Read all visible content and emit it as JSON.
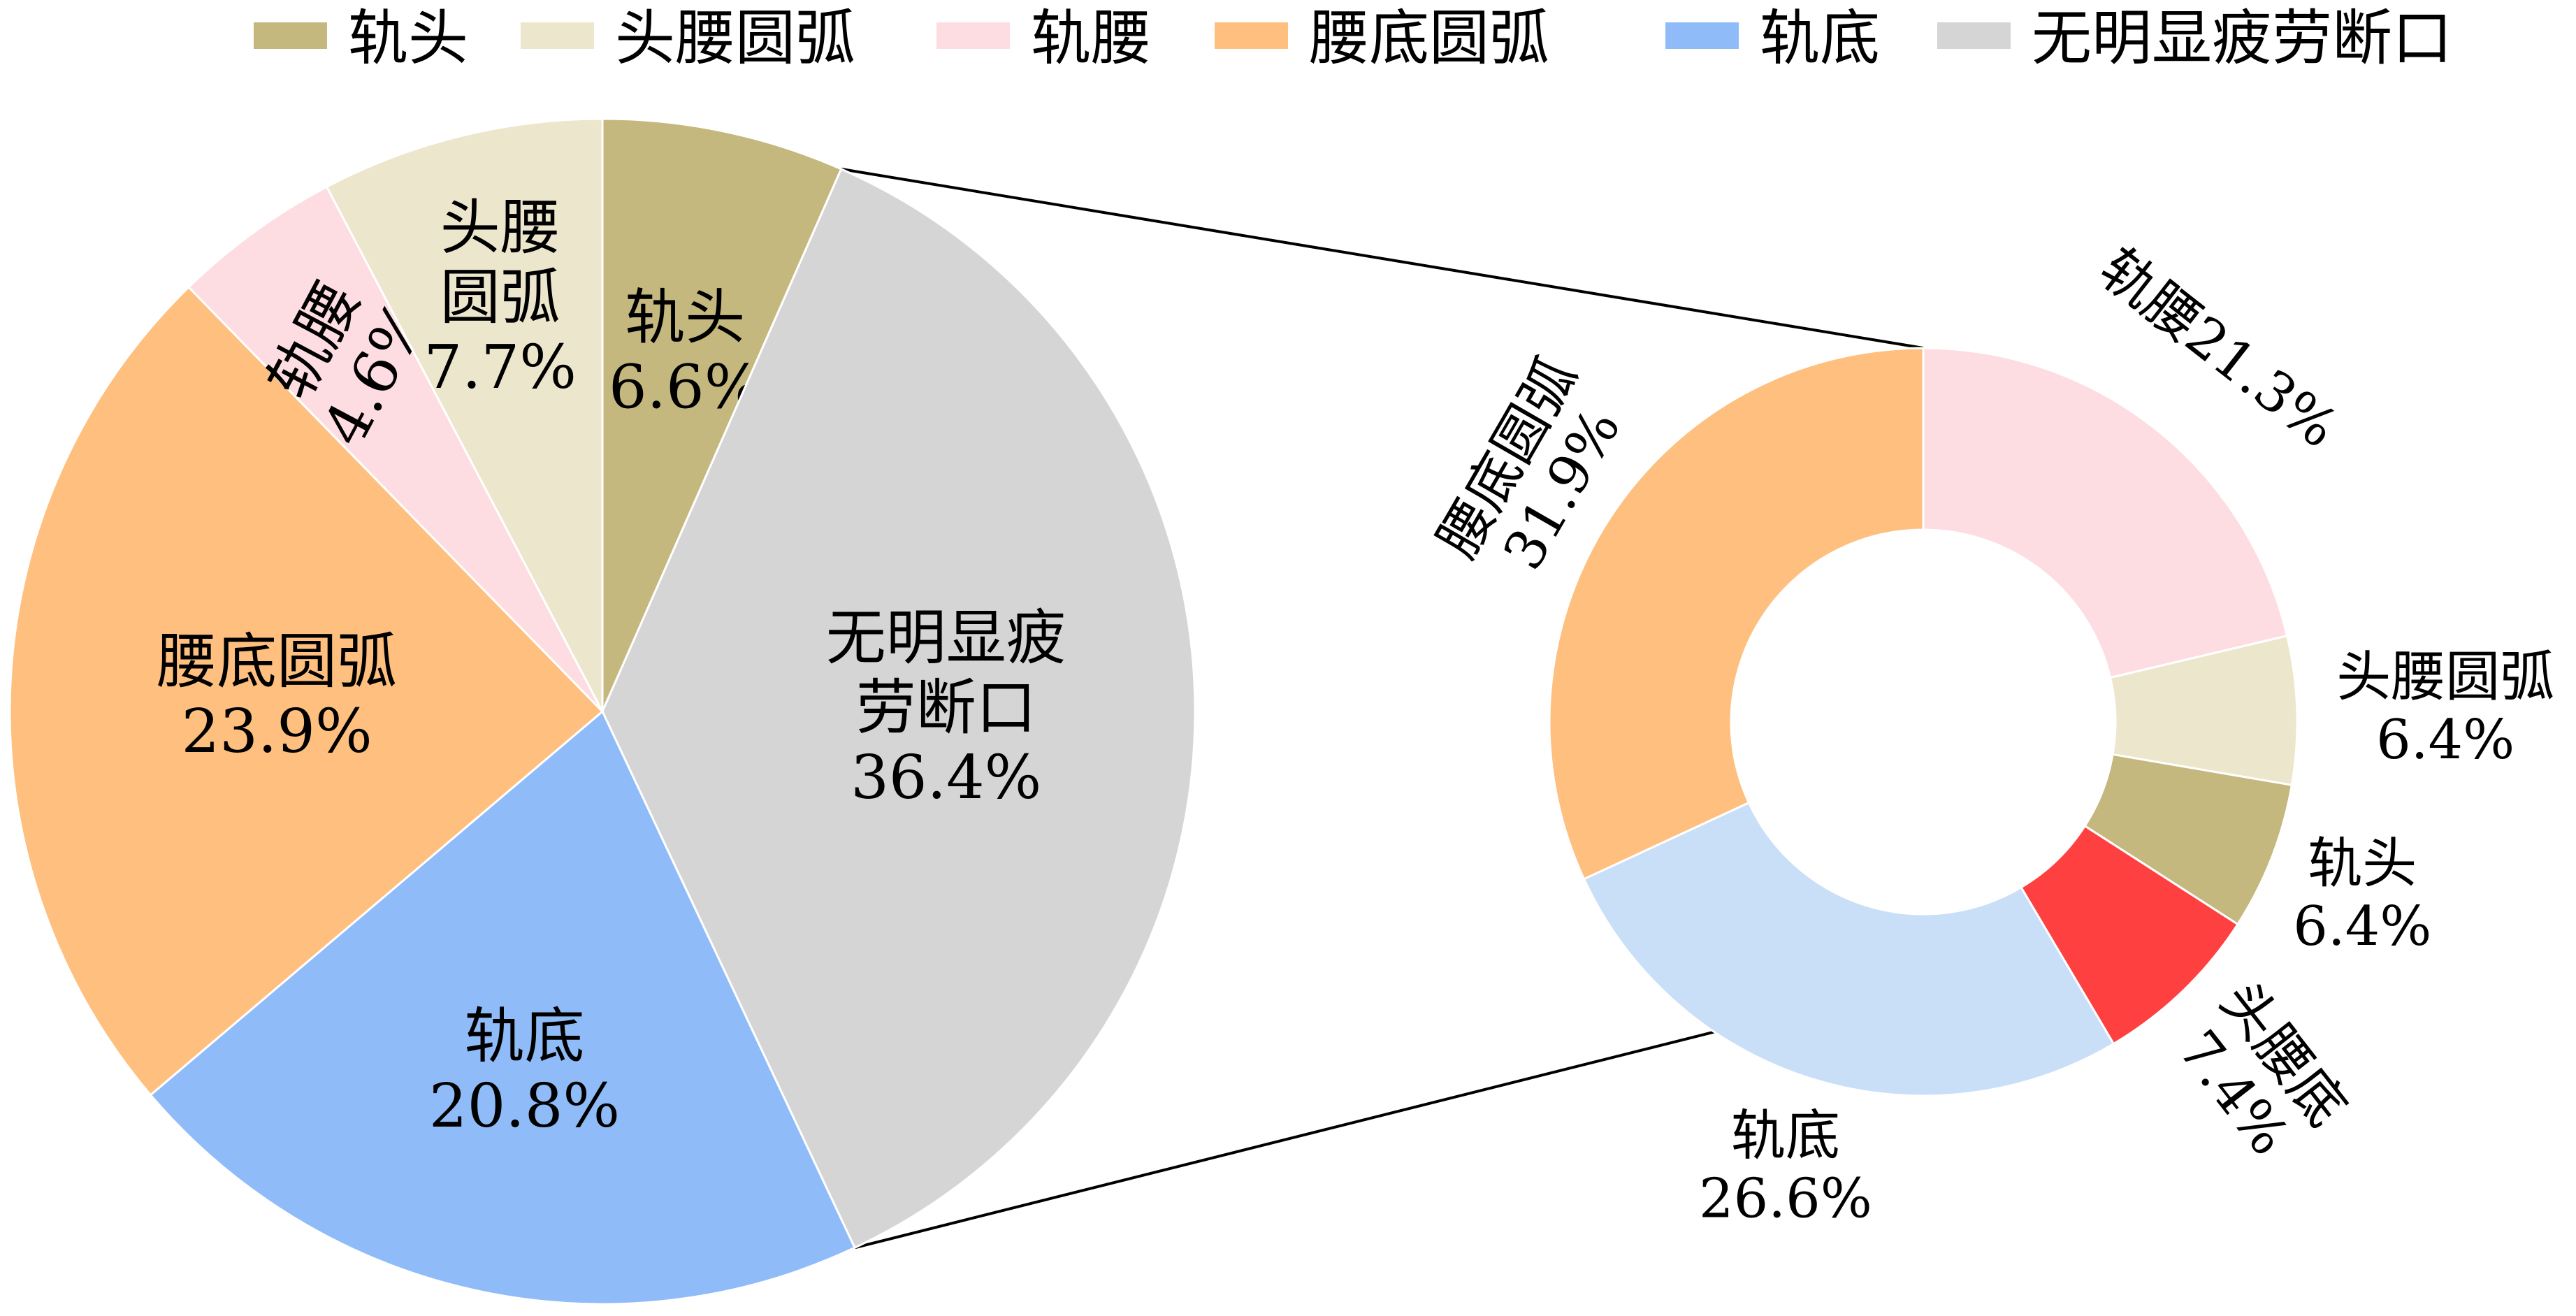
{
  "chart_data": [
    {
      "type": "pie",
      "legend": {
        "placement": "top",
        "entries": [
          {
            "label": "轨头",
            "color": "#C4B87E"
          },
          {
            "label": "头腰圆弧",
            "color": "#ECE6CC"
          },
          {
            "label": "轨腰",
            "color": "#FDDDE2"
          },
          {
            "label": "腰底圆弧",
            "color": "#FEBF7F"
          },
          {
            "label": "轨底",
            "color": "#8FBCF8"
          },
          {
            "label": "无明显疲劳断口",
            "color": "#D5D5D5"
          }
        ]
      },
      "slices": [
        {
          "label_lines": [
            "轨头",
            "6.6%"
          ],
          "value": 6.6,
          "color": "#C4B87E"
        },
        {
          "label_lines": [
            "无明显疲",
            "劳断口",
            "36.4%"
          ],
          "value": 36.4,
          "color": "#D5D5D5"
        },
        {
          "label_lines": [
            "轨底",
            "20.8%"
          ],
          "value": 20.8,
          "color": "#8FBCF8"
        },
        {
          "label_lines": [
            "腰底圆弧",
            "23.9%"
          ],
          "value": 23.9,
          "color": "#FEBF7F"
        },
        {
          "label_lines": [
            "轨腰",
            "4.6%"
          ],
          "value": 4.6,
          "color": "#FDDDE2"
        },
        {
          "label_lines": [
            "头腰",
            "圆弧",
            "7.7%"
          ],
          "value": 7.7,
          "color": "#ECE6CC"
        }
      ]
    },
    {
      "type": "donut",
      "breakdown_of": "无明显疲劳断口",
      "slices": [
        {
          "label_lines": [
            "轨腰21.3%"
          ],
          "value": 21.3,
          "color": "#FDDDE2"
        },
        {
          "label_lines": [
            "头腰圆弧",
            "6.4%"
          ],
          "value": 6.4,
          "color": "#ECE6CC"
        },
        {
          "label_lines": [
            "轨头",
            "6.4%"
          ],
          "value": 6.4,
          "color": "#C4B87E"
        },
        {
          "label_lines": [
            "头腰底",
            "7.4%"
          ],
          "value": 7.4,
          "color": "#FF4040"
        },
        {
          "label_lines": [
            "轨底",
            "26.6%"
          ],
          "value": 26.6,
          "color": "#C9DFF8"
        },
        {
          "label_lines": [
            "腰底圆弧",
            "31.9%"
          ],
          "value": 31.9,
          "color": "#FEBF7F"
        }
      ]
    }
  ]
}
